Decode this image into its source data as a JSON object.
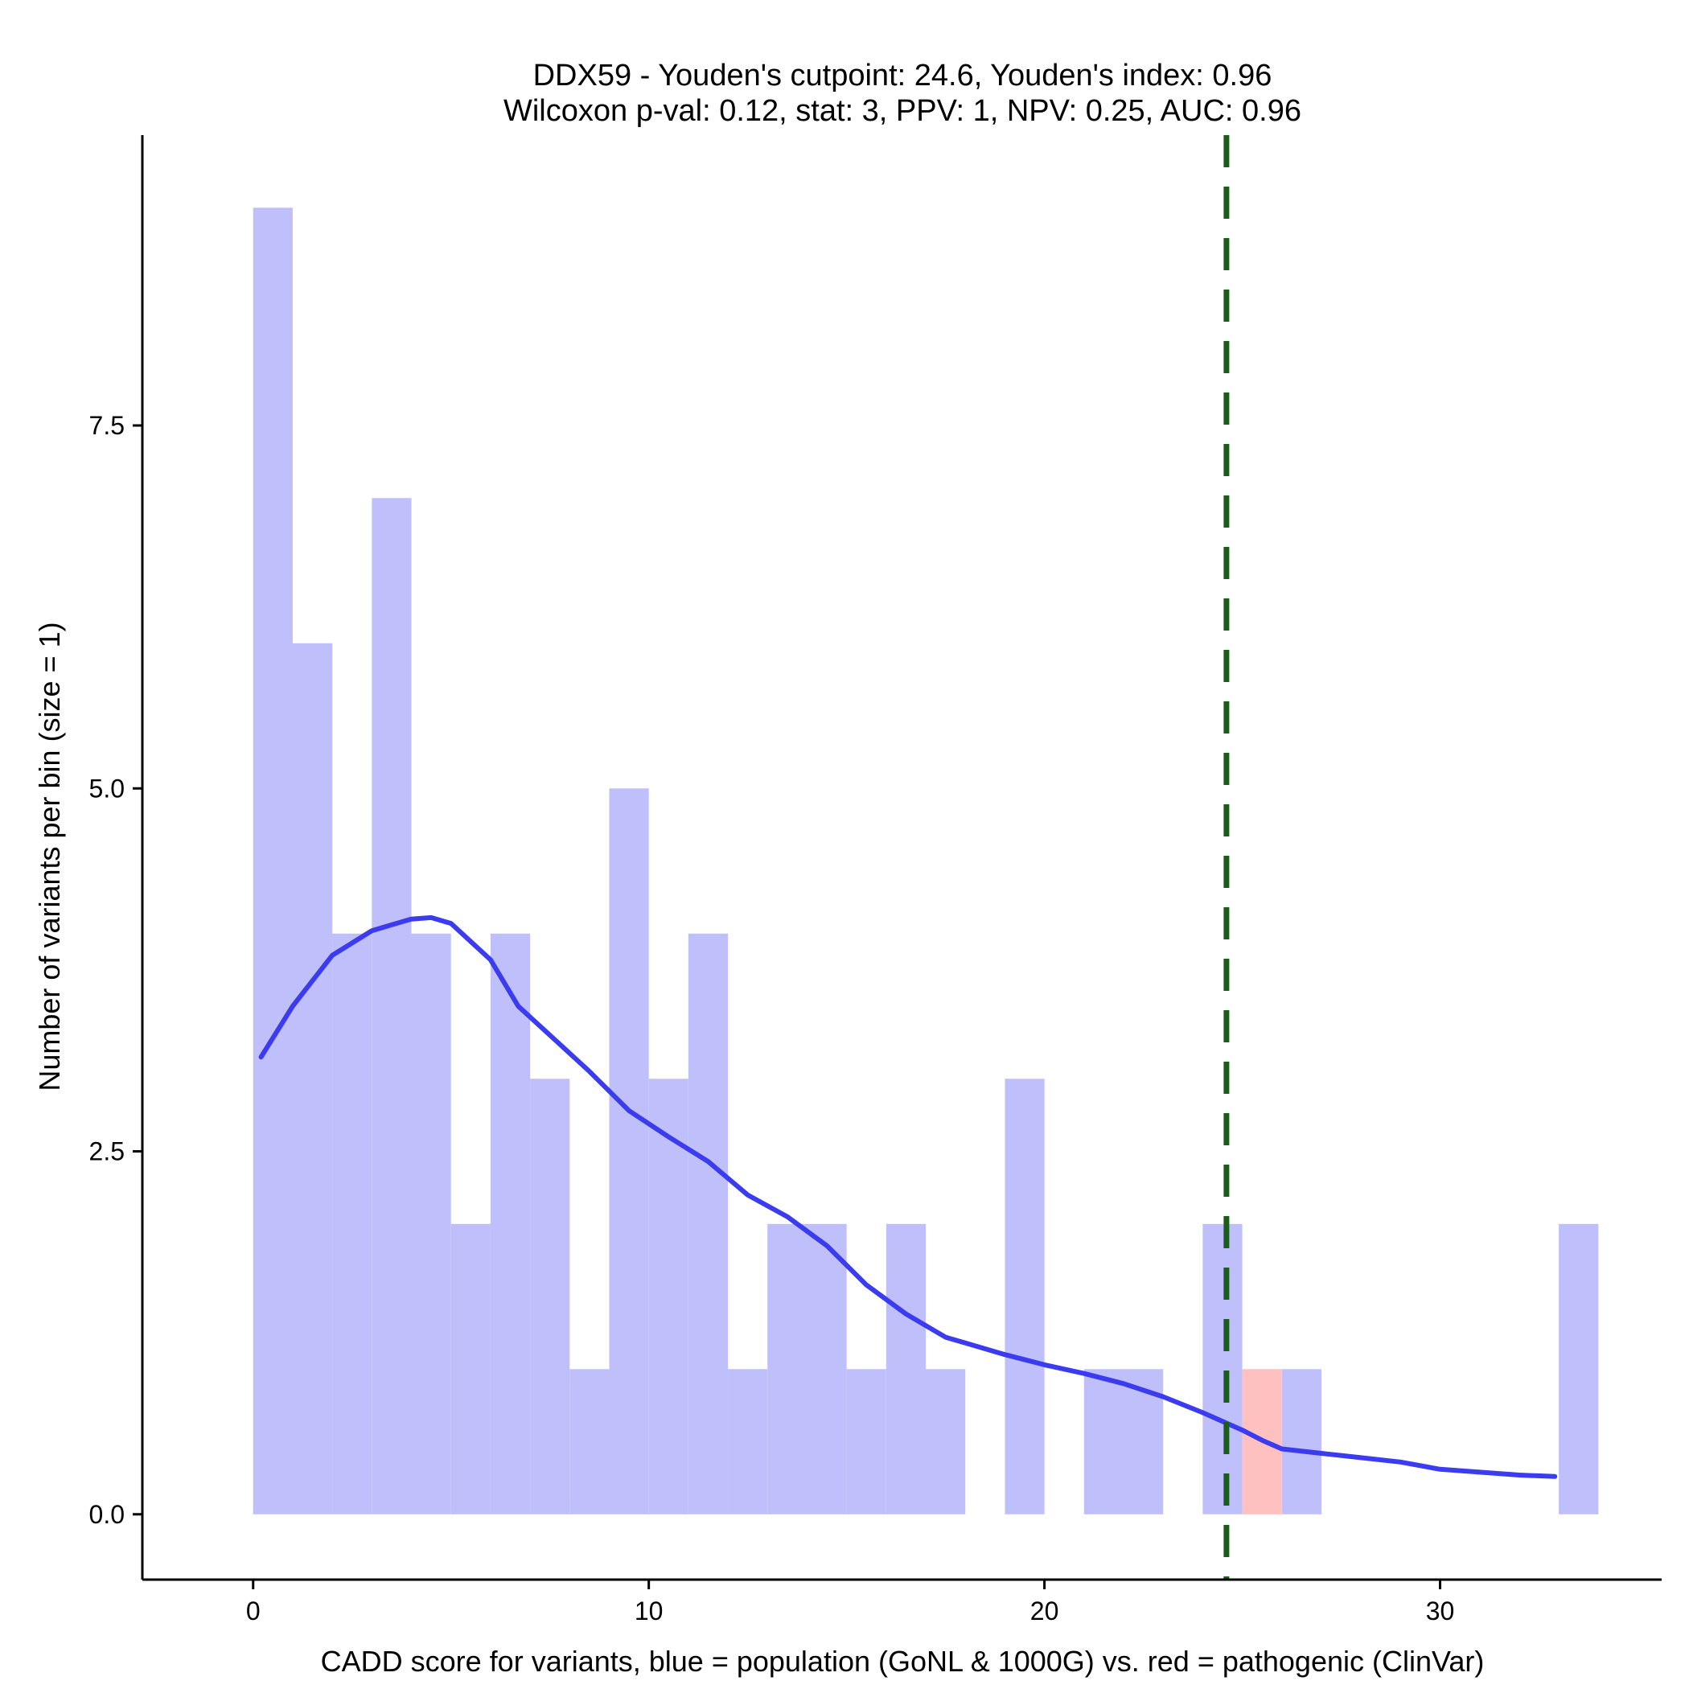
{
  "chart_data": {
    "type": "bar",
    "title_line1": "DDX59 - Youden's cutpoint: 24.6, Youden's index: 0.96",
    "title_line2": "Wilcoxon p-val: 0.12, stat: 3, PPV: 1, NPV: 0.25, AUC: 0.96",
    "xlabel": "CADD score for variants, blue = population (GoNL & 1000G) vs. red = pathogenic (ClinVar)",
    "ylabel": "Number of variants per bin (size = 1)",
    "xlim": [
      -2.8,
      35.6
    ],
    "ylim": [
      -0.45,
      9.5
    ],
    "x_ticks": [
      0,
      10,
      20,
      30
    ],
    "x_tick_labels": [
      "0",
      "10",
      "20",
      "30"
    ],
    "y_ticks": [
      0,
      2.5,
      5,
      7.5
    ],
    "y_tick_labels": [
      "0.0",
      "2.5",
      "5.0",
      "7.5"
    ],
    "bin_width": 1,
    "series": [
      {
        "name": "population (GoNL & 1000G)",
        "color": "#bfbffb",
        "bin_starts": [
          0,
          1,
          2,
          3,
          4,
          5,
          6,
          7,
          8,
          9,
          10,
          11,
          12,
          13,
          14,
          15,
          16,
          17,
          19,
          21,
          22,
          24,
          26,
          33
        ],
        "values": [
          9,
          6,
          4,
          7,
          4,
          2,
          4,
          3,
          1,
          5,
          3,
          4,
          1,
          2,
          2,
          1,
          2,
          1,
          3,
          1,
          1,
          2,
          1,
          2
        ]
      },
      {
        "name": "pathogenic (ClinVar)",
        "color": "#ffc0c0",
        "bin_starts": [
          25
        ],
        "values": [
          1
        ]
      }
    ],
    "density_curve": {
      "color": "#3b3bf0",
      "x": [
        0.2,
        1.0,
        2.0,
        3.0,
        3.5,
        4.0,
        4.5,
        5.0,
        6.0,
        6.7,
        7.5,
        8.5,
        9.5,
        10.5,
        11.5,
        12.5,
        13.5,
        14.5,
        15.5,
        16.5,
        17.5,
        18.0,
        19.0,
        20.0,
        21.0,
        22.0,
        23.0,
        24.0,
        25.0,
        25.5,
        26.0,
        27.0,
        28.0,
        29.0,
        30.0,
        31.0,
        32.0,
        32.9
      ],
      "y": [
        3.15,
        3.5,
        3.85,
        4.02,
        4.06,
        4.1,
        4.11,
        4.07,
        3.82,
        3.5,
        3.3,
        3.05,
        2.78,
        2.6,
        2.43,
        2.2,
        2.05,
        1.85,
        1.58,
        1.38,
        1.22,
        1.18,
        1.1,
        1.03,
        0.97,
        0.9,
        0.81,
        0.7,
        0.58,
        0.51,
        0.45,
        0.42,
        0.39,
        0.36,
        0.31,
        0.29,
        0.27,
        0.26
      ]
    },
    "cutpoint": {
      "x": 24.6,
      "color": "#1b5e1b",
      "label": "Youden's cutpoint"
    }
  }
}
